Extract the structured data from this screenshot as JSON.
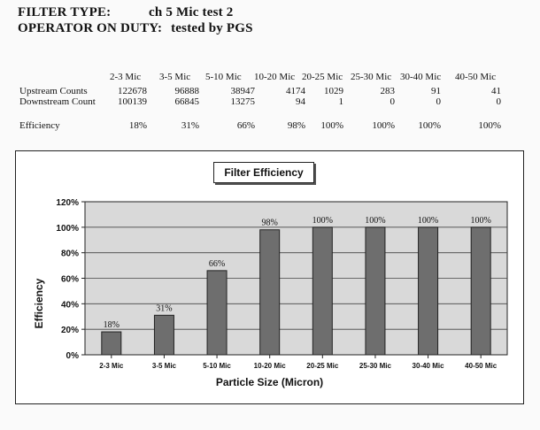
{
  "header": {
    "filter_type_label": "FILTER TYPE:",
    "filter_type_value": "ch 5 Mic test 2",
    "operator_label": "OPERATOR ON DUTY:",
    "operator_value": "tested by PGS"
  },
  "table": {
    "columns": [
      "2-3 Mic",
      "3-5 Mic",
      "5-10 Mic",
      "10-20 Mic",
      "20-25 Mic",
      "25-30 Mic",
      "30-40 Mic",
      "40-50 Mic"
    ],
    "rows": [
      {
        "label": "Upstream Counts",
        "values": [
          "122678",
          "96888",
          "38947",
          "4174",
          "1029",
          "283",
          "91",
          "41"
        ]
      },
      {
        "label": "Downstream Count",
        "values": [
          "100139",
          "66845",
          "13275",
          "94",
          "1",
          "0",
          "0",
          "0"
        ]
      },
      {
        "label": "Efficiency",
        "values": [
          "18%",
          "31%",
          "66%",
          "98%",
          "100%",
          "100%",
          "100%",
          "100%"
        ]
      }
    ]
  },
  "chart_data": {
    "type": "bar",
    "title": "Filter Efficiency",
    "xlabel": "Particle Size (Micron)",
    "ylabel": "Efficiency",
    "categories": [
      "2-3 Mic",
      "3-5 Mic",
      "5-10 Mic",
      "10-20 Mic",
      "20-25 Mic",
      "25-30 Mic",
      "30-40 Mic",
      "40-50 Mic"
    ],
    "values": [
      18,
      31,
      66,
      98,
      100,
      100,
      100,
      100
    ],
    "data_labels": [
      "18%",
      "31%",
      "66%",
      "98%",
      "100%",
      "100%",
      "100%",
      "100%"
    ],
    "ylim": [
      0,
      120
    ],
    "yticks": [
      "0%",
      "20%",
      "40%",
      "60%",
      "80%",
      "100%",
      "120%"
    ],
    "grid": true,
    "legend": "none",
    "bar_color": "#6e6e6e",
    "plot_background": "#d9d9d9"
  }
}
